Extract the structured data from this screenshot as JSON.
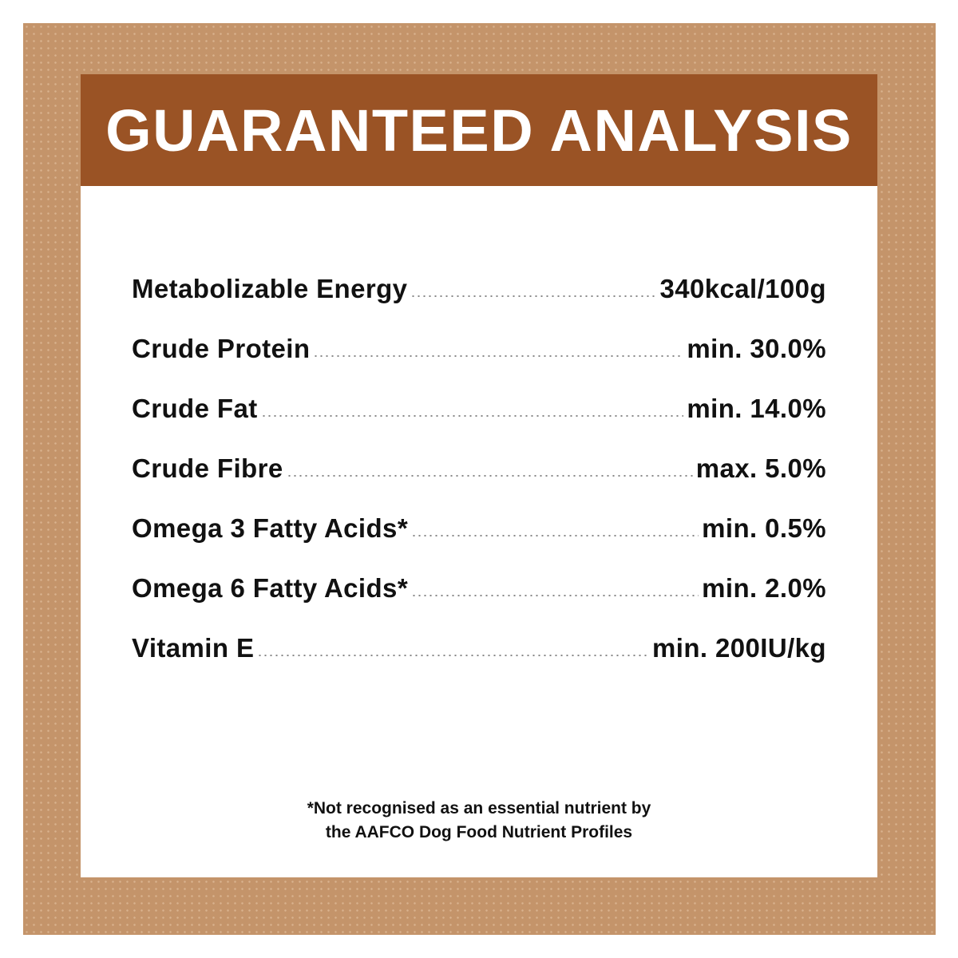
{
  "title": "GUARANTEED ANALYSIS",
  "rows": [
    {
      "label": "Metabolizable Energy",
      "value": "340kcal/100g"
    },
    {
      "label": "Crude Protein",
      "value": "min. 30.0%"
    },
    {
      "label": "Crude Fat",
      "value": "min. 14.0%"
    },
    {
      "label": "Crude Fibre",
      "value": "max. 5.0%"
    },
    {
      "label": "Omega 3 Fatty Acids*",
      "value": "min. 0.5%"
    },
    {
      "label": "Omega 6 Fatty Acids*",
      "value": "min. 2.0%"
    },
    {
      "label": "Vitamin E",
      "value": "min. 200IU/kg"
    }
  ],
  "footnote": {
    "line1": "*Not recognised as an essential nutrient by",
    "line2": "the AAFCO Dog Food Nutrient Profiles"
  },
  "colors": {
    "frame": "#c4946a",
    "header": "#9a5325",
    "panel": "#ffffff",
    "text": "#111111"
  }
}
